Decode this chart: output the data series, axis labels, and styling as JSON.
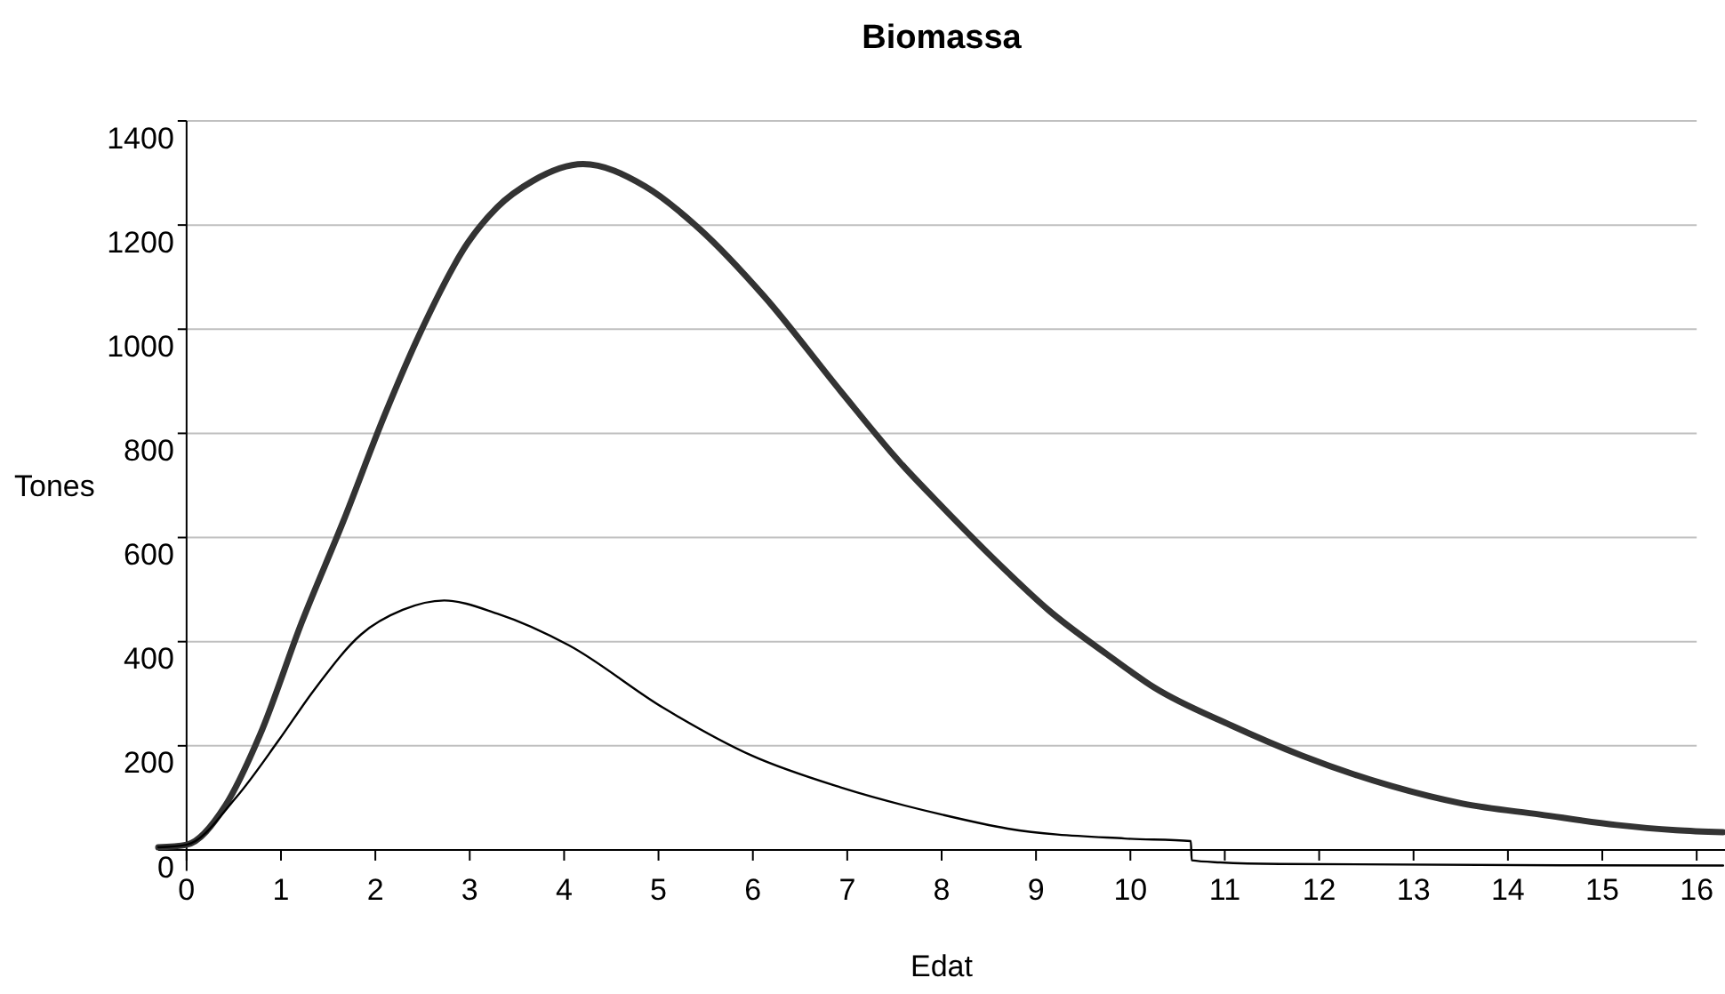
{
  "chart_data": {
    "type": "line",
    "title": "Biomassa",
    "xlabel": "Edat",
    "ylabel": "Tones",
    "xlim": [
      -0.3,
      16.3
    ],
    "xticks": [
      0,
      1,
      2,
      3,
      4,
      5,
      6,
      7,
      8,
      9,
      10,
      11,
      12,
      13,
      14,
      15,
      16
    ],
    "ylim": [
      -40,
      1400
    ],
    "yticks": [
      0,
      200,
      400,
      600,
      800,
      1000,
      1200,
      1400
    ],
    "grid": "y",
    "marker": "none",
    "line_style": "solid",
    "series": [
      {
        "color": "#333333",
        "x": [
          -0.3,
          0,
          0.41,
          0.78,
          1.22,
          1.66,
          2.1,
          2.48,
          2.98,
          3.29,
          3.67,
          4.2,
          4.86,
          5.42,
          6.12,
          6.93,
          7.56,
          8.0,
          8.7,
          9.13,
          9.75,
          10.26,
          11.07,
          11.82,
          12.76,
          13.52,
          14.34,
          15.15,
          15.78,
          16.28
        ],
        "values": [
          5,
          10,
          85,
          222,
          437,
          631,
          836,
          995,
          1166,
          1234,
          1285,
          1317,
          1274,
          1195,
          1063,
          881,
          744,
          660,
          533,
          461,
          376,
          311,
          239,
          181,
          123,
          89,
          68,
          48,
          38,
          34
        ]
      },
      {
        "color": "#000000",
        "x": [
          -0.3,
          0,
          0.53,
          0.97,
          1.35,
          1.85,
          2.29,
          2.73,
          3.29,
          4.05,
          5.05,
          5.99,
          6.93,
          8.0,
          8.7,
          9.94,
          10.64,
          10.65,
          10.95,
          11.58,
          16.28
        ],
        "values": [
          5,
          10,
          102,
          209,
          307,
          414,
          461,
          479,
          454,
          393,
          273,
          181,
          120,
          68,
          41,
          22,
          17,
          -20,
          -24,
          -27,
          -30
        ]
      }
    ]
  }
}
